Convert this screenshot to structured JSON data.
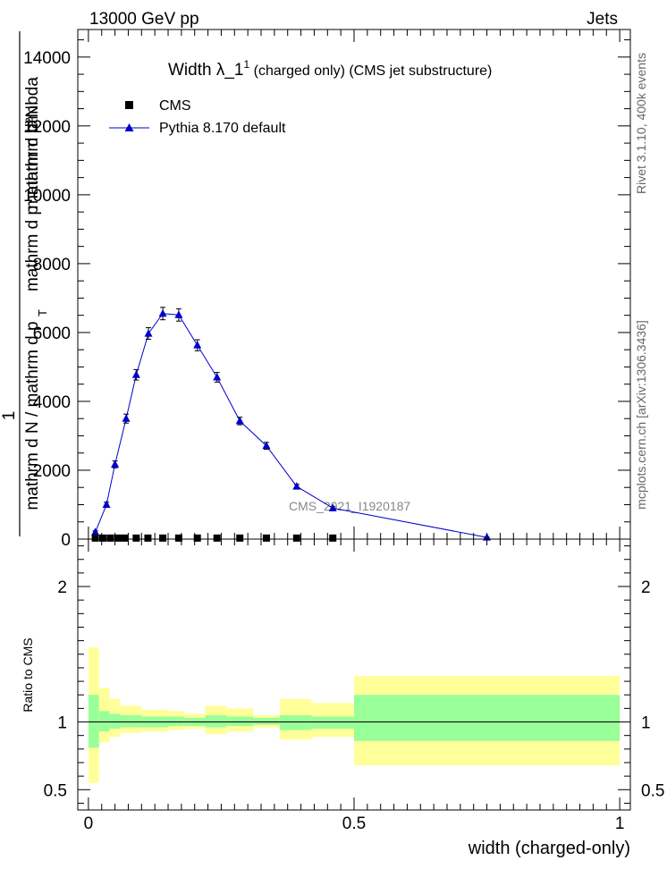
{
  "header": {
    "left": "13000 GeV pp",
    "right": "Jets"
  },
  "side_labels": {
    "rivet": "Rivet 3.1.10,  400k events",
    "mcplots": "mcplots.cern.ch [arXiv:1306.3436]"
  },
  "watermark": "CMS_2021_I1920187",
  "chart_data": [
    {
      "type": "scatter",
      "title": {
        "main": "Width λ_1",
        "superscript": "1",
        "suffix": " (charged only) (CMS jet substructure)"
      },
      "ylabel_top_fragments": [
        "mathrm d²N",
        "mathrm d p",
        "mathrm d lambda"
      ],
      "ylabel_top_subscript": "T",
      "ylabel_bottom": "mathrm d N / mathrm d p",
      "ylabel_one": "1",
      "ylim": [
        0,
        14800
      ],
      "yticks": [
        {
          "value": 0,
          "label": "0"
        },
        {
          "value": 2000,
          "label": "2000"
        },
        {
          "value": 4000,
          "label": "4000"
        },
        {
          "value": 6000,
          "label": "6000"
        },
        {
          "value": 8000,
          "label": "8000"
        },
        {
          "value": 10000,
          "label": "10000"
        },
        {
          "value": 12000,
          "label": "12000"
        },
        {
          "value": 14000,
          "label": "14000"
        }
      ],
      "legend": [
        {
          "name": "CMS",
          "marker": "square",
          "color": "#000000"
        },
        {
          "name": "Pythia 8.170 default",
          "marker": "triangle",
          "color": "#0000cc"
        }
      ],
      "series": [
        {
          "name": "CMS",
          "x": [
            0.013,
            0.027,
            0.041,
            0.055,
            0.068,
            0.09,
            0.112,
            0.14,
            0.17,
            0.205,
            0.242,
            0.285,
            0.335,
            0.392,
            0.46
          ],
          "values": [
            30,
            30,
            30,
            30,
            30,
            30,
            30,
            30,
            30,
            30,
            30,
            30,
            30,
            30,
            30
          ]
        },
        {
          "name": "Pythia 8.170 default",
          "x": [
            0.013,
            0.034,
            0.05,
            0.071,
            0.09,
            0.113,
            0.14,
            0.17,
            0.205,
            0.242,
            0.285,
            0.335,
            0.392,
            0.46,
            0.75
          ],
          "values": [
            200,
            1000,
            2170,
            3500,
            4770,
            5970,
            6550,
            6510,
            5630,
            4700,
            3430,
            2710,
            1530,
            900,
            50
          ],
          "errors": [
            40,
            70,
            100,
            130,
            150,
            170,
            180,
            180,
            160,
            140,
            110,
            100,
            60,
            40,
            10
          ]
        }
      ]
    },
    {
      "type": "area",
      "ylabel": "Ratio to CMS",
      "xlabel": "width (charged-only)",
      "xlim": [
        -0.02,
        1.02
      ],
      "ylim": [
        0.35,
        2.35
      ],
      "yticks": [
        {
          "value": 0.5,
          "label": "0.5"
        },
        {
          "value": 1,
          "label": "1"
        },
        {
          "value": 2,
          "label": "2"
        }
      ],
      "xticks": [
        {
          "value": 0,
          "label": "0"
        },
        {
          "value": 0.5,
          "label": "0.5"
        },
        {
          "value": 1,
          "label": "1"
        }
      ],
      "reference_line": 1,
      "colors": {
        "inner_band": "#99ff99",
        "outer_band": "#ffff99",
        "line": "#0000cc"
      },
      "bins": [
        {
          "x0": 0.0,
          "x1": 0.02,
          "inner": [
            0.81,
            1.2
          ],
          "outer": [
            0.55,
            1.55
          ]
        },
        {
          "x0": 0.02,
          "x1": 0.04,
          "inner": [
            0.93,
            1.08
          ],
          "outer": [
            0.85,
            1.25
          ]
        },
        {
          "x0": 0.04,
          "x1": 0.06,
          "inner": [
            0.95,
            1.06
          ],
          "outer": [
            0.89,
            1.17
          ]
        },
        {
          "x0": 0.06,
          "x1": 0.1,
          "inner": [
            0.96,
            1.05
          ],
          "outer": [
            0.92,
            1.12
          ]
        },
        {
          "x0": 0.1,
          "x1": 0.15,
          "inner": [
            0.96,
            1.04
          ],
          "outer": [
            0.93,
            1.09
          ]
        },
        {
          "x0": 0.15,
          "x1": 0.18,
          "inner": [
            0.97,
            1.04
          ],
          "outer": [
            0.94,
            1.08
          ]
        },
        {
          "x0": 0.18,
          "x1": 0.22,
          "inner": [
            0.97,
            1.03
          ],
          "outer": [
            0.95,
            1.06
          ]
        },
        {
          "x0": 0.22,
          "x1": 0.26,
          "inner": [
            0.96,
            1.05
          ],
          "outer": [
            0.91,
            1.12
          ]
        },
        {
          "x0": 0.26,
          "x1": 0.31,
          "inner": [
            0.97,
            1.04
          ],
          "outer": [
            0.93,
            1.1
          ]
        },
        {
          "x0": 0.31,
          "x1": 0.36,
          "inner": [
            0.98,
            1.03
          ],
          "outer": [
            0.96,
            1.05
          ]
        },
        {
          "x0": 0.36,
          "x1": 0.42,
          "inner": [
            0.94,
            1.05
          ],
          "outer": [
            0.87,
            1.17
          ]
        },
        {
          "x0": 0.42,
          "x1": 0.5,
          "inner": [
            0.95,
            1.04
          ],
          "outer": [
            0.89,
            1.14
          ]
        },
        {
          "x0": 0.5,
          "x1": 1.0,
          "inner": [
            0.86,
            1.2
          ],
          "outer": [
            0.68,
            1.34
          ]
        }
      ],
      "ratio_line": [
        {
          "x": 0.0,
          "y": 1.0
        },
        {
          "x": 1.0,
          "y": 1.0
        }
      ]
    }
  ]
}
